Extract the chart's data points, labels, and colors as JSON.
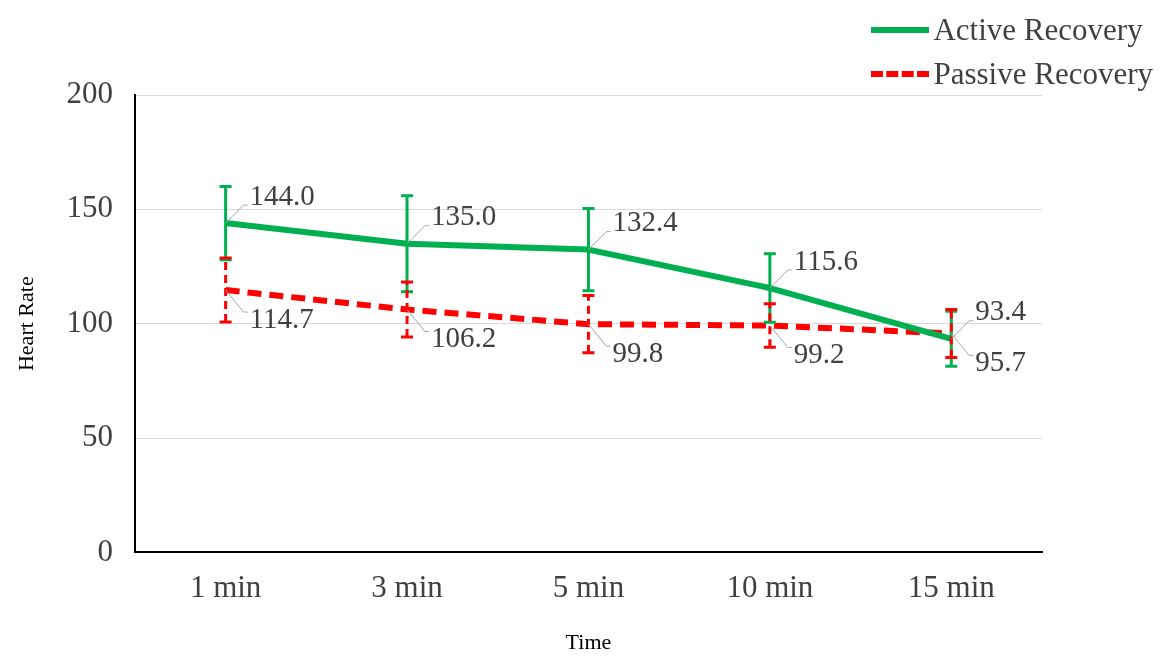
{
  "chart_data": {
    "type": "line",
    "xlabel": "Time",
    "ylabel": "Heart Rate",
    "categories": [
      "1 min",
      "3 min",
      "5 min",
      "10 min",
      "15 min"
    ],
    "series": [
      {
        "name": "Active Recovery",
        "color": "#00b050",
        "line_style": "solid",
        "values": [
          144.0,
          135.0,
          132.4,
          115.6,
          93.4
        ],
        "errors": [
          16,
          21,
          18,
          15,
          12
        ],
        "value_labels": [
          "144.0",
          "135.0",
          "132.4",
          "115.6",
          "93.4"
        ]
      },
      {
        "name": "Passive Recovery",
        "color": "#ff0000",
        "line_style": "dashed",
        "values": [
          114.7,
          106.2,
          99.8,
          99.2,
          95.7
        ],
        "errors": [
          14,
          12,
          12.5,
          9.5,
          10.5
        ],
        "value_labels": [
          "114.7",
          "106.2",
          "99.8",
          "99.2",
          "95.7"
        ]
      }
    ],
    "ylim": [
      0,
      200
    ],
    "yticks": [
      0,
      50,
      100,
      150,
      200
    ],
    "grid": "y",
    "legend": "top right",
    "marker": "none"
  }
}
